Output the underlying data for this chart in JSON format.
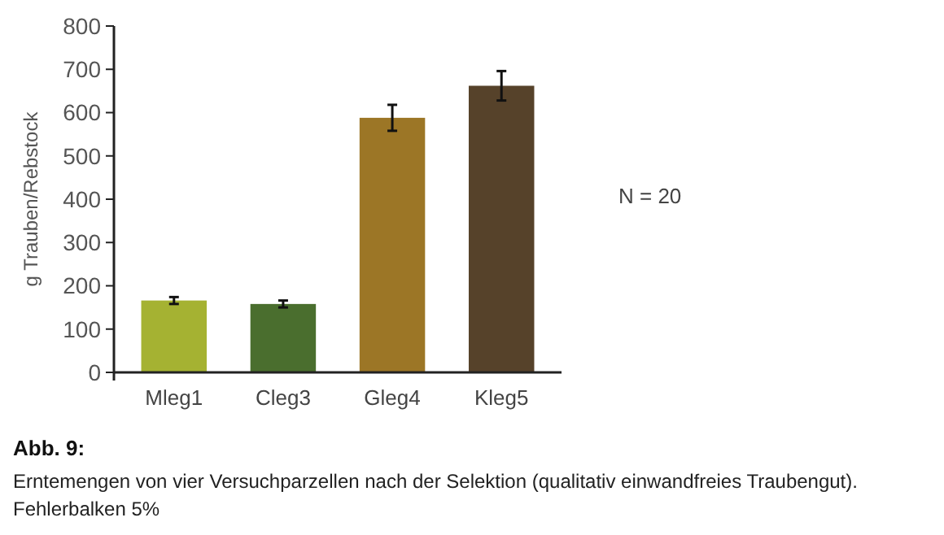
{
  "chart_data": {
    "type": "bar",
    "title": "Abb. 9:",
    "ylabel": "g Trauben/Rebstock",
    "categories": [
      "Mleg1",
      "Cleg3",
      "Gleg4",
      "Kleg5"
    ],
    "values": [
      166,
      158,
      588,
      662
    ],
    "colors": [
      "#a5b232",
      "#4a6e2e",
      "#9c7626",
      "#56422a"
    ],
    "errors": [
      8,
      8,
      30,
      34
    ],
    "ylim": [
      0,
      800
    ],
    "yticks": [
      0,
      100,
      200,
      300,
      400,
      500,
      600,
      700,
      800
    ],
    "grid": false,
    "annotations": [
      "N = 20",
      "Erntemengen von vier Versuchparzellen nach der Selektion (qualitativ einwandfreies Traubengut). Fehlerbalken 5%"
    ]
  }
}
